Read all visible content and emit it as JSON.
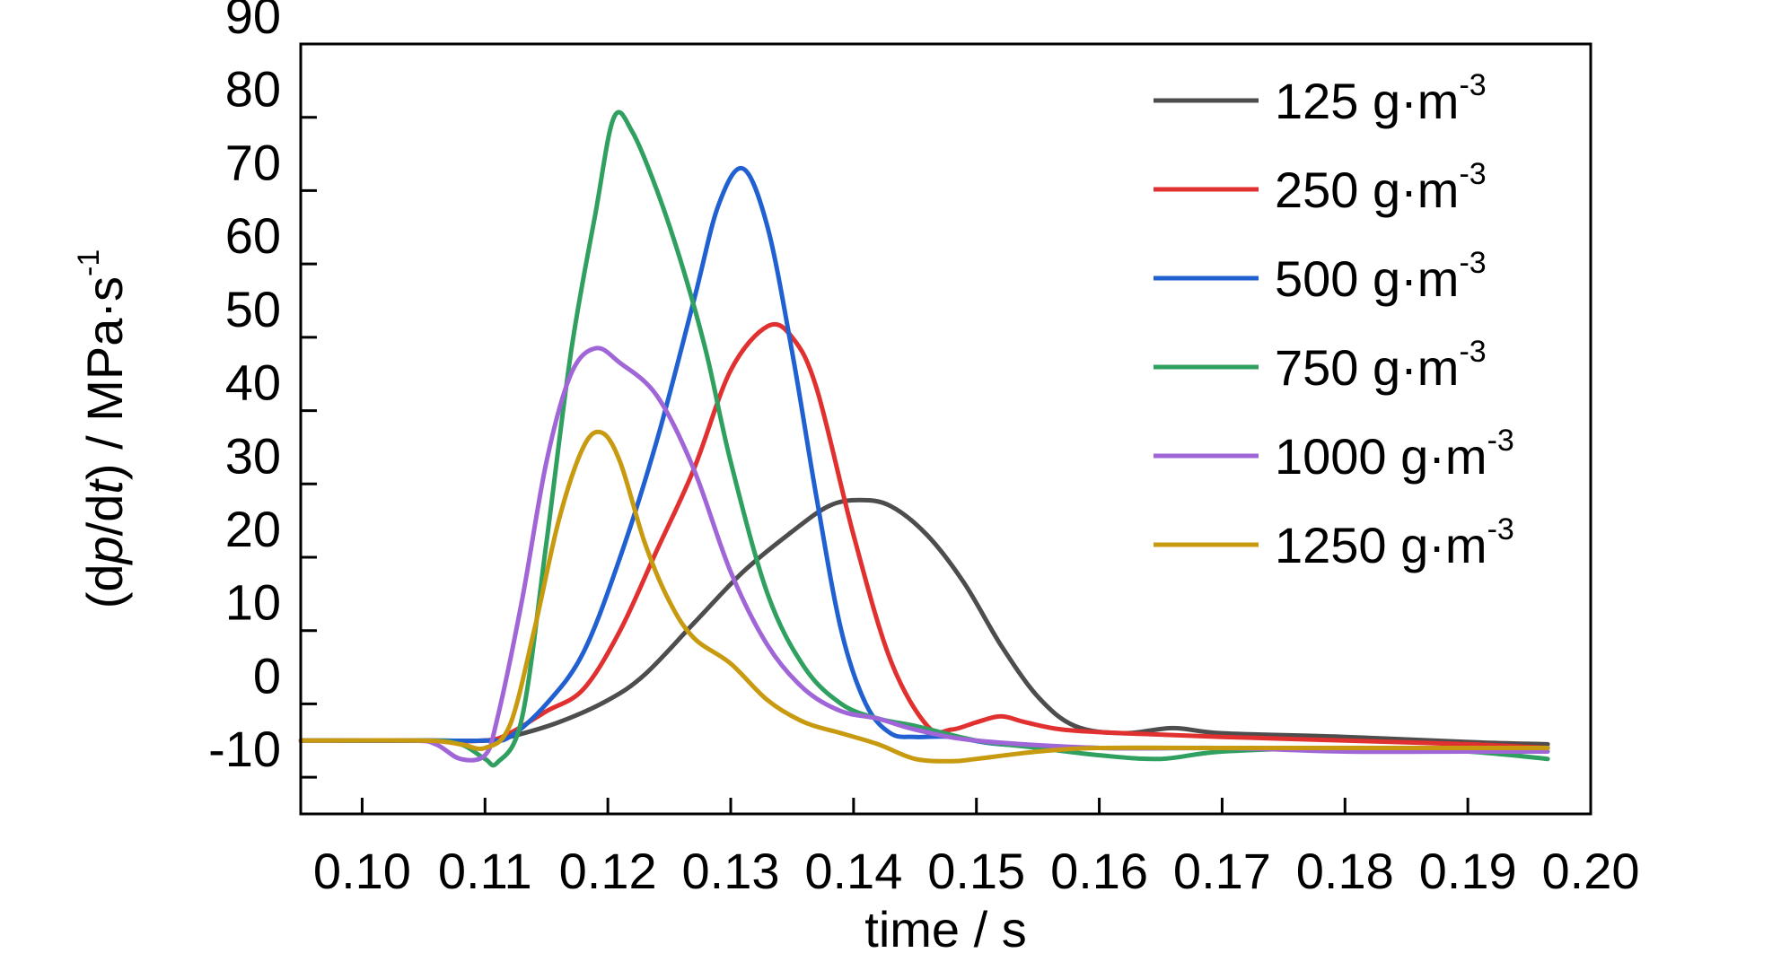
{
  "chart_data": {
    "type": "line",
    "xlabel": "time / s",
    "ylabel": {
      "prefix": "(d",
      "p": "p",
      "mid": "/d",
      "t": "t",
      "suffix": ") / MPa·s",
      "sup": "-1"
    },
    "xlim": [
      0.095,
      0.2
    ],
    "ylim": [
      -15,
      90
    ],
    "x_ticks": [
      0.1,
      0.11,
      0.12,
      0.13,
      0.14,
      0.15,
      0.16,
      0.17,
      0.18,
      0.19,
      0.2
    ],
    "x_tick_labels": [
      "0.10",
      "0.11",
      "0.12",
      "0.13",
      "0.14",
      "0.15",
      "0.16",
      "0.17",
      "0.18",
      "0.19",
      "0.20"
    ],
    "y_ticks": [
      -10,
      0,
      10,
      20,
      30,
      40,
      50,
      60,
      70,
      80,
      90
    ],
    "y_tick_labels": [
      "-10",
      "0",
      "10",
      "20",
      "30",
      "40",
      "50",
      "60",
      "70",
      "80",
      "90"
    ],
    "legend": {
      "position": "top-right"
    },
    "series": [
      {
        "name": "125 g·m",
        "sup": "-3",
        "color": "#4d4d4d",
        "x": [
          0.095,
          0.105,
          0.11,
          0.112,
          0.116,
          0.12,
          0.123,
          0.127,
          0.131,
          0.135,
          0.138,
          0.1405,
          0.143,
          0.146,
          0.149,
          0.152,
          0.155,
          0.158,
          0.162,
          0.166,
          0.17,
          0.18,
          0.19,
          0.1965
        ],
        "y": [
          -5,
          -5,
          -5,
          -4.5,
          -2.5,
          0.5,
          4,
          11,
          18,
          23.5,
          27,
          27.8,
          27,
          23,
          16.5,
          8,
          1,
          -3,
          -4,
          -3.3,
          -4,
          -4.5,
          -5.2,
          -5.5
        ]
      },
      {
        "name": "250 g·m",
        "sup": "-3",
        "color": "#e03030",
        "x": [
          0.095,
          0.105,
          0.11,
          0.112,
          0.115,
          0.118,
          0.121,
          0.124,
          0.127,
          0.13,
          0.133,
          0.135,
          0.137,
          0.14,
          0.143,
          0.146,
          0.148,
          0.15,
          0.152,
          0.154,
          0.157,
          0.162,
          0.17,
          0.18,
          0.19,
          0.1965
        ],
        "y": [
          -5,
          -5,
          -5,
          -4,
          -1,
          2,
          10,
          21,
          32,
          45.5,
          51.5,
          50,
          43,
          23,
          6,
          -3,
          -3.5,
          -2.5,
          -1.7,
          -2.5,
          -3.5,
          -4,
          -4.5,
          -5,
          -5.5,
          -6
        ]
      },
      {
        "name": "500 g·m",
        "sup": "-3",
        "color": "#2060d0",
        "x": [
          0.095,
          0.105,
          0.11,
          0.112,
          0.115,
          0.118,
          0.121,
          0.124,
          0.127,
          0.129,
          0.131,
          0.133,
          0.135,
          0.137,
          0.139,
          0.141,
          0.143,
          0.145,
          0.148,
          0.152,
          0.16,
          0.17,
          0.18,
          0.19,
          0.1965
        ],
        "y": [
          -5,
          -5,
          -5,
          -4.5,
          0,
          7,
          20,
          36,
          55,
          68,
          73,
          65,
          48,
          28,
          10,
          0,
          -4,
          -4.5,
          -4.5,
          -5.5,
          -6,
          -6,
          -6,
          -6,
          -6
        ]
      },
      {
        "name": "750 g·m",
        "sup": "-3",
        "color": "#30a060",
        "x": [
          0.095,
          0.105,
          0.108,
          0.11,
          0.111,
          0.113,
          0.115,
          0.117,
          0.119,
          0.1205,
          0.122,
          0.124,
          0.126,
          0.128,
          0.13,
          0.133,
          0.136,
          0.139,
          0.142,
          0.145,
          0.15,
          0.155,
          0.16,
          0.165,
          0.17,
          0.18,
          0.19,
          0.1965
        ],
        "y": [
          -5,
          -5,
          -5.5,
          -7.5,
          -8,
          -2,
          22,
          48,
          67,
          80,
          78,
          70,
          60,
          48,
          33,
          15,
          5,
          0,
          -2,
          -3,
          -5,
          -6,
          -7,
          -7.5,
          -6.5,
          -6,
          -6.5,
          -7.5
        ]
      },
      {
        "name": "1000 g·m",
        "sup": "-3",
        "color": "#a066d8",
        "x": [
          0.095,
          0.104,
          0.106,
          0.108,
          0.11,
          0.111,
          0.113,
          0.115,
          0.117,
          0.119,
          0.121,
          0.124,
          0.127,
          0.13,
          0.133,
          0.136,
          0.139,
          0.142,
          0.145,
          0.15,
          0.16,
          0.17,
          0.18,
          0.19,
          0.1965
        ],
        "y": [
          -5,
          -5,
          -5.5,
          -7.5,
          -7,
          -2,
          14,
          33,
          45,
          48.5,
          46.5,
          42,
          32,
          18,
          8,
          2,
          -1,
          -2,
          -3.5,
          -5,
          -6,
          -6,
          -6.5,
          -6.5,
          -6.5
        ]
      },
      {
        "name": "1250 g·m",
        "sup": "-3",
        "color": "#c89a10",
        "x": [
          0.095,
          0.105,
          0.108,
          0.11,
          0.112,
          0.114,
          0.116,
          0.118,
          0.1195,
          0.121,
          0.123,
          0.125,
          0.127,
          0.13,
          0.133,
          0.136,
          0.139,
          0.142,
          0.145,
          0.148,
          0.15,
          0.155,
          0.16,
          0.17,
          0.18,
          0.19,
          0.1965
        ],
        "y": [
          -5,
          -5,
          -5.5,
          -6,
          -3,
          10,
          25,
          35,
          37,
          33,
          22,
          14,
          9,
          5.5,
          0.5,
          -2.5,
          -4,
          -5.5,
          -7.5,
          -7.8,
          -7.5,
          -6.5,
          -6,
          -6,
          -6,
          -6,
          -6
        ]
      }
    ]
  }
}
